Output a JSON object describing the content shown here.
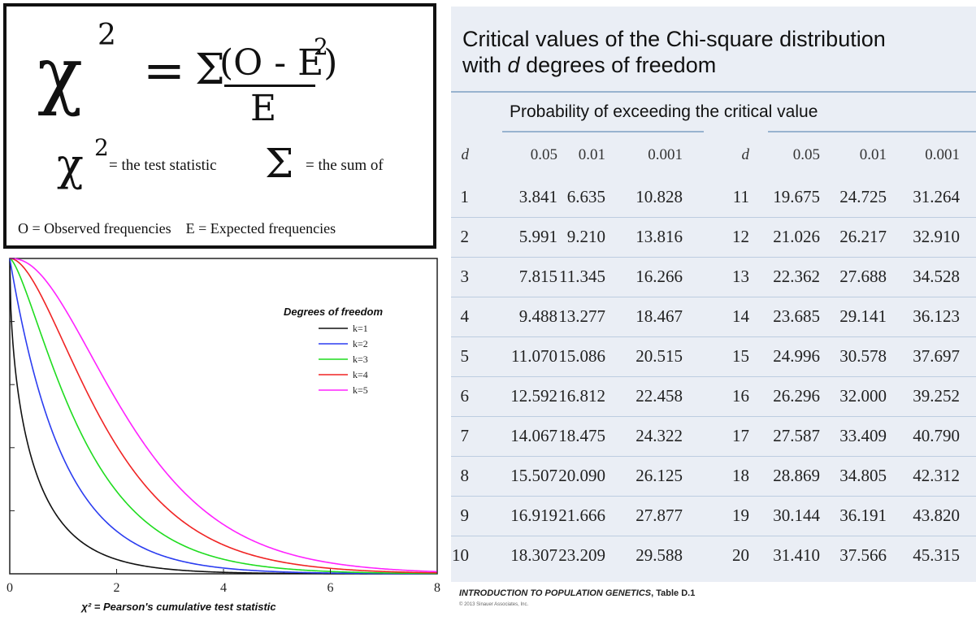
{
  "formula": {
    "chi": "χ",
    "exp": "2",
    "equals": "=",
    "sum": "Σ",
    "numerator": "(O - E)",
    "denominator": "E",
    "chi_label": "= the test statistic",
    "sum_label": "= the sum of",
    "legend_line": "O = Observed frequencies    E = Expected frequencies"
  },
  "chart_data": {
    "type": "line",
    "legend_title": "Degrees of freedom",
    "xlabel": "χ² = Pearson's cumulative test statistic",
    "ylabel": "",
    "xlim": [
      0,
      8
    ],
    "ylim": [
      0,
      1
    ],
    "x_ticks": [
      "0",
      "2",
      "4",
      "6",
      "8"
    ],
    "series": [
      {
        "name": "k=1",
        "k": 1,
        "color": "#111111"
      },
      {
        "name": "k=2",
        "k": 2,
        "color": "#2b3df0"
      },
      {
        "name": "k=3",
        "k": 3,
        "color": "#1fdc1f"
      },
      {
        "name": "k=4",
        "k": 4,
        "color": "#f02424"
      },
      {
        "name": "k=5",
        "k": 5,
        "color": "#ff22ff"
      }
    ]
  },
  "table": {
    "title_line1": "Critical values of the Chi-square distribution",
    "title_line2_pre": "with ",
    "title_line2_d": "d",
    "title_line2_post": " degrees of freedom",
    "prob_label": "Probability of exceeding the critical value",
    "headers": [
      "d",
      "0.05",
      "0.01",
      "0.001",
      "d",
      "0.05",
      "0.01",
      "0.001"
    ],
    "rows": [
      [
        "1",
        "3.841",
        "6.635",
        "10.828",
        "11",
        "19.675",
        "24.725",
        "31.264"
      ],
      [
        "2",
        "5.991",
        "9.210",
        "13.816",
        "12",
        "21.026",
        "26.217",
        "32.910"
      ],
      [
        "3",
        "7.815",
        "11.345",
        "16.266",
        "13",
        "22.362",
        "27.688",
        "34.528"
      ],
      [
        "4",
        "9.488",
        "13.277",
        "18.467",
        "14",
        "23.685",
        "29.141",
        "36.123"
      ],
      [
        "5",
        "11.070",
        "15.086",
        "20.515",
        "15",
        "24.996",
        "30.578",
        "37.697"
      ],
      [
        "6",
        "12.592",
        "16.812",
        "22.458",
        "16",
        "26.296",
        "32.000",
        "39.252"
      ],
      [
        "7",
        "14.067",
        "18.475",
        "24.322",
        "17",
        "27.587",
        "33.409",
        "40.790"
      ],
      [
        "8",
        "15.507",
        "20.090",
        "26.125",
        "18",
        "28.869",
        "34.805",
        "42.312"
      ],
      [
        "9",
        "16.919",
        "21.666",
        "27.877",
        "19",
        "30.144",
        "36.191",
        "43.820"
      ],
      [
        "10",
        "18.307",
        "23.209",
        "29.588",
        "20",
        "31.410",
        "37.566",
        "45.315"
      ]
    ],
    "source_title": "INTRODUCTION TO POPULATION GENETICS",
    "source_table": ", Table D.1",
    "copyright": "© 2013 Sinauer Associates, Inc."
  }
}
